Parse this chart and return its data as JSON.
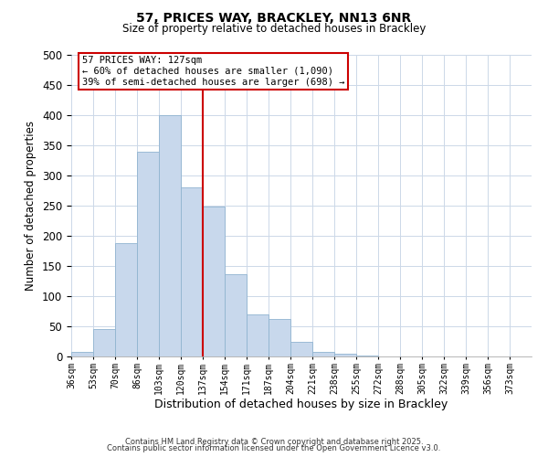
{
  "title": "57, PRICES WAY, BRACKLEY, NN13 6NR",
  "subtitle": "Size of property relative to detached houses in Brackley",
  "xlabel": "Distribution of detached houses by size in Brackley",
  "ylabel": "Number of detached properties",
  "bar_labels": [
    "36sqm",
    "53sqm",
    "70sqm",
    "86sqm",
    "103sqm",
    "120sqm",
    "137sqm",
    "154sqm",
    "171sqm",
    "187sqm",
    "204sqm",
    "221sqm",
    "238sqm",
    "255sqm",
    "272sqm",
    "288sqm",
    "305sqm",
    "322sqm",
    "339sqm",
    "356sqm",
    "373sqm"
  ],
  "bar_values": [
    8,
    46,
    188,
    340,
    400,
    280,
    248,
    137,
    70,
    62,
    25,
    8,
    4,
    2,
    0,
    0,
    0,
    0,
    0,
    0,
    0
  ],
  "bar_color": "#c8d8ec",
  "bar_edge_color": "#90b4d0",
  "property_label": "57 PRICES WAY: 127sqm",
  "annotation_line1": "← 60% of detached houses are smaller (1,090)",
  "annotation_line2": "39% of semi-detached houses are larger (698) →",
  "vline_color": "#cc0000",
  "annotation_box_color": "#cc0000",
  "ylim": [
    0,
    500
  ],
  "yticks": [
    0,
    50,
    100,
    150,
    200,
    250,
    300,
    350,
    400,
    450,
    500
  ],
  "background_color": "#ffffff",
  "grid_color": "#ccd8e8",
  "footer1": "Contains HM Land Registry data © Crown copyright and database right 2025.",
  "footer2": "Contains public sector information licensed under the Open Government Licence v3.0."
}
